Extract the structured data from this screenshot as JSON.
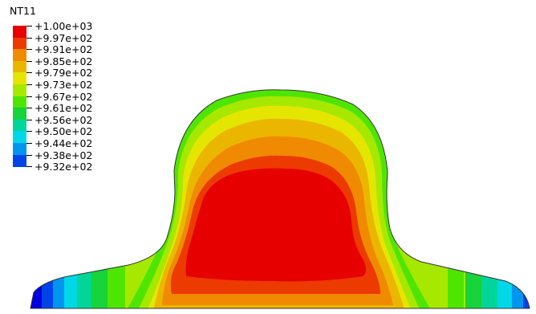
{
  "legend": {
    "title": "NT11",
    "labels": [
      "+1.00e+03",
      "+9.97e+02",
      "+9.91e+02",
      "+9.85e+02",
      "+9.79e+02",
      "+9.73e+02",
      "+9.67e+02",
      "+9.61e+02",
      "+9.56e+02",
      "+9.50e+02",
      "+9.44e+02",
      "+9.38e+02",
      "+9.32e+02"
    ],
    "colors": [
      "#e60000",
      "#ec3a00",
      "#f08a00",
      "#ebb600",
      "#e5e600",
      "#a7e800",
      "#4ee600",
      "#16d43a",
      "#00d69a",
      "#00d8e8",
      "#0096f0",
      "#0044e8",
      "#0000e0"
    ]
  },
  "contour": {
    "bands_outer_to_inner": [
      "#0000e0",
      "#0044e8",
      "#0096f0",
      "#00d8e8",
      "#00d69a",
      "#16d43a",
      "#4ee600",
      "#a7e800",
      "#e5e600",
      "#ebb600",
      "#f08a00",
      "#ec3a00",
      "#e60000"
    ]
  }
}
